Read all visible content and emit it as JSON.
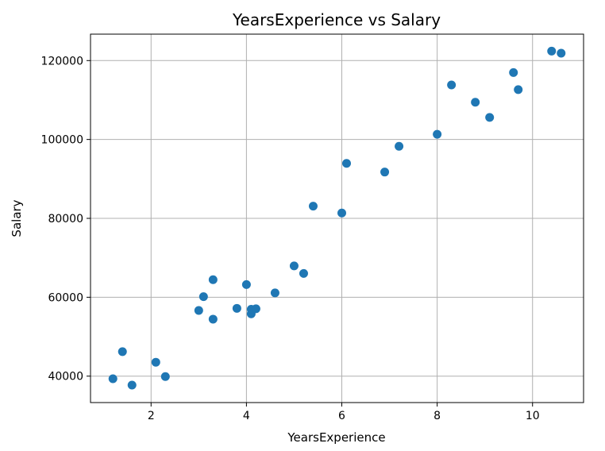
{
  "chart_data": {
    "type": "scatter",
    "title": "YearsExperience vs Salary",
    "xlabel": "YearsExperience",
    "ylabel": "Salary",
    "xlim": [
      0.73,
      11.07
    ],
    "ylim": [
      33300,
      126700
    ],
    "xticks": [
      2,
      4,
      6,
      8,
      10
    ],
    "xtick_labels": [
      "2",
      "4",
      "6",
      "8",
      "10"
    ],
    "yticks": [
      40000,
      60000,
      80000,
      100000,
      120000
    ],
    "ytick_labels": [
      "40000",
      "60000",
      "80000",
      "100000",
      "120000"
    ],
    "grid": true,
    "marker_color": "#1f77b4",
    "series": [
      {
        "x": [
          1.2,
          1.4,
          1.6,
          2.1,
          2.3,
          3.0,
          3.1,
          3.3,
          3.3,
          3.8,
          4.0,
          4.1,
          4.1,
          4.2,
          4.6,
          5.0,
          5.2,
          5.4,
          6.0,
          6.1,
          6.9,
          7.2,
          8.0,
          8.3,
          8.8,
          9.1,
          9.6,
          9.7,
          10.4,
          10.6
        ],
        "y": [
          39344,
          46206,
          37732,
          43526,
          39892,
          56643,
          60151,
          54446,
          64446,
          57190,
          63219,
          55795,
          56958,
          57082,
          61112,
          67939,
          66030,
          83089,
          81364,
          93941,
          91739,
          98274,
          101303,
          113813,
          109432,
          105583,
          116970,
          112636,
          122392,
          121873
        ]
      }
    ]
  }
}
